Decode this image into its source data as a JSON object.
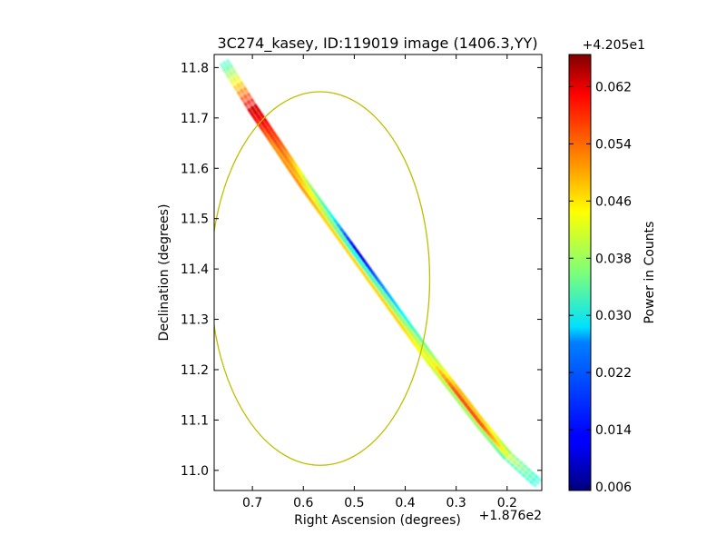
{
  "chart_data": {
    "type": "heatmap",
    "title": "3C274_kasey, ID:119019 image (1406.3,YY)",
    "xlabel": "Right Ascension (degrees)",
    "ylabel": "Declination (degrees)",
    "x_offset_label": "+1.876e2",
    "xlim": [
      0.775,
      0.132
    ],
    "ylim": [
      10.96,
      11.826
    ],
    "x_ticks": [
      0.7,
      0.6,
      0.5,
      0.4,
      0.3,
      0.2
    ],
    "x_tick_labels": [
      "0.7",
      "0.6",
      "0.5",
      "0.4",
      "0.3",
      "0.2"
    ],
    "y_ticks": [
      11.0,
      11.1,
      11.2,
      11.3,
      11.4,
      11.5,
      11.6,
      11.7,
      11.8
    ],
    "y_tick_labels": [
      "11.0",
      "11.1",
      "11.2",
      "11.3",
      "11.4",
      "11.5",
      "11.6",
      "11.7",
      "11.8"
    ],
    "colorbar": {
      "label": "Power in Counts",
      "offset_label": "+4.205e1",
      "colormap": "jet",
      "range": [
        0.0055,
        0.0665
      ],
      "ticks": [
        0.006,
        0.014,
        0.022,
        0.03,
        0.038,
        0.046,
        0.054,
        0.062
      ],
      "tick_labels": [
        "0.006",
        "0.014",
        "0.022",
        "0.030",
        "0.038",
        "0.046",
        "0.054",
        "0.062"
      ]
    },
    "circle": {
      "center_ra": 0.567,
      "center_dec": 11.381,
      "radius_ra": 0.215,
      "radius_dec": 0.371,
      "color": "#bfbf00"
    },
    "strip_profile": [
      {
        "ra": 0.755,
        "dec": 11.81,
        "left": 0.03,
        "center": 0.03,
        "right": 0.03
      },
      {
        "ra": 0.7,
        "dec": 11.72,
        "left": 0.062,
        "center": 0.062,
        "right": 0.062
      },
      {
        "ra": 0.65,
        "dec": 11.645,
        "left": 0.054,
        "center": 0.054,
        "right": 0.05
      },
      {
        "ra": 0.6,
        "dec": 11.57,
        "left": 0.04,
        "center": 0.046,
        "right": 0.05
      },
      {
        "ra": 0.55,
        "dec": 11.5,
        "left": 0.03,
        "center": 0.038,
        "right": 0.046
      },
      {
        "ra": 0.5,
        "dec": 11.43,
        "left": 0.01,
        "center": 0.03,
        "right": 0.046
      },
      {
        "ra": 0.45,
        "dec": 11.36,
        "left": 0.022,
        "center": 0.034,
        "right": 0.046
      },
      {
        "ra": 0.4,
        "dec": 11.29,
        "left": 0.03,
        "center": 0.038,
        "right": 0.046
      },
      {
        "ra": 0.35,
        "dec": 11.22,
        "left": 0.038,
        "center": 0.042,
        "right": 0.042
      },
      {
        "ra": 0.3,
        "dec": 11.155,
        "left": 0.048,
        "center": 0.054,
        "right": 0.038
      },
      {
        "ra": 0.25,
        "dec": 11.09,
        "left": 0.046,
        "center": 0.054,
        "right": 0.038
      },
      {
        "ra": 0.2,
        "dec": 11.03,
        "left": 0.038,
        "center": 0.042,
        "right": 0.034
      },
      {
        "ra": 0.14,
        "dec": 10.975,
        "left": 0.03,
        "center": 0.03,
        "right": 0.03
      }
    ]
  }
}
